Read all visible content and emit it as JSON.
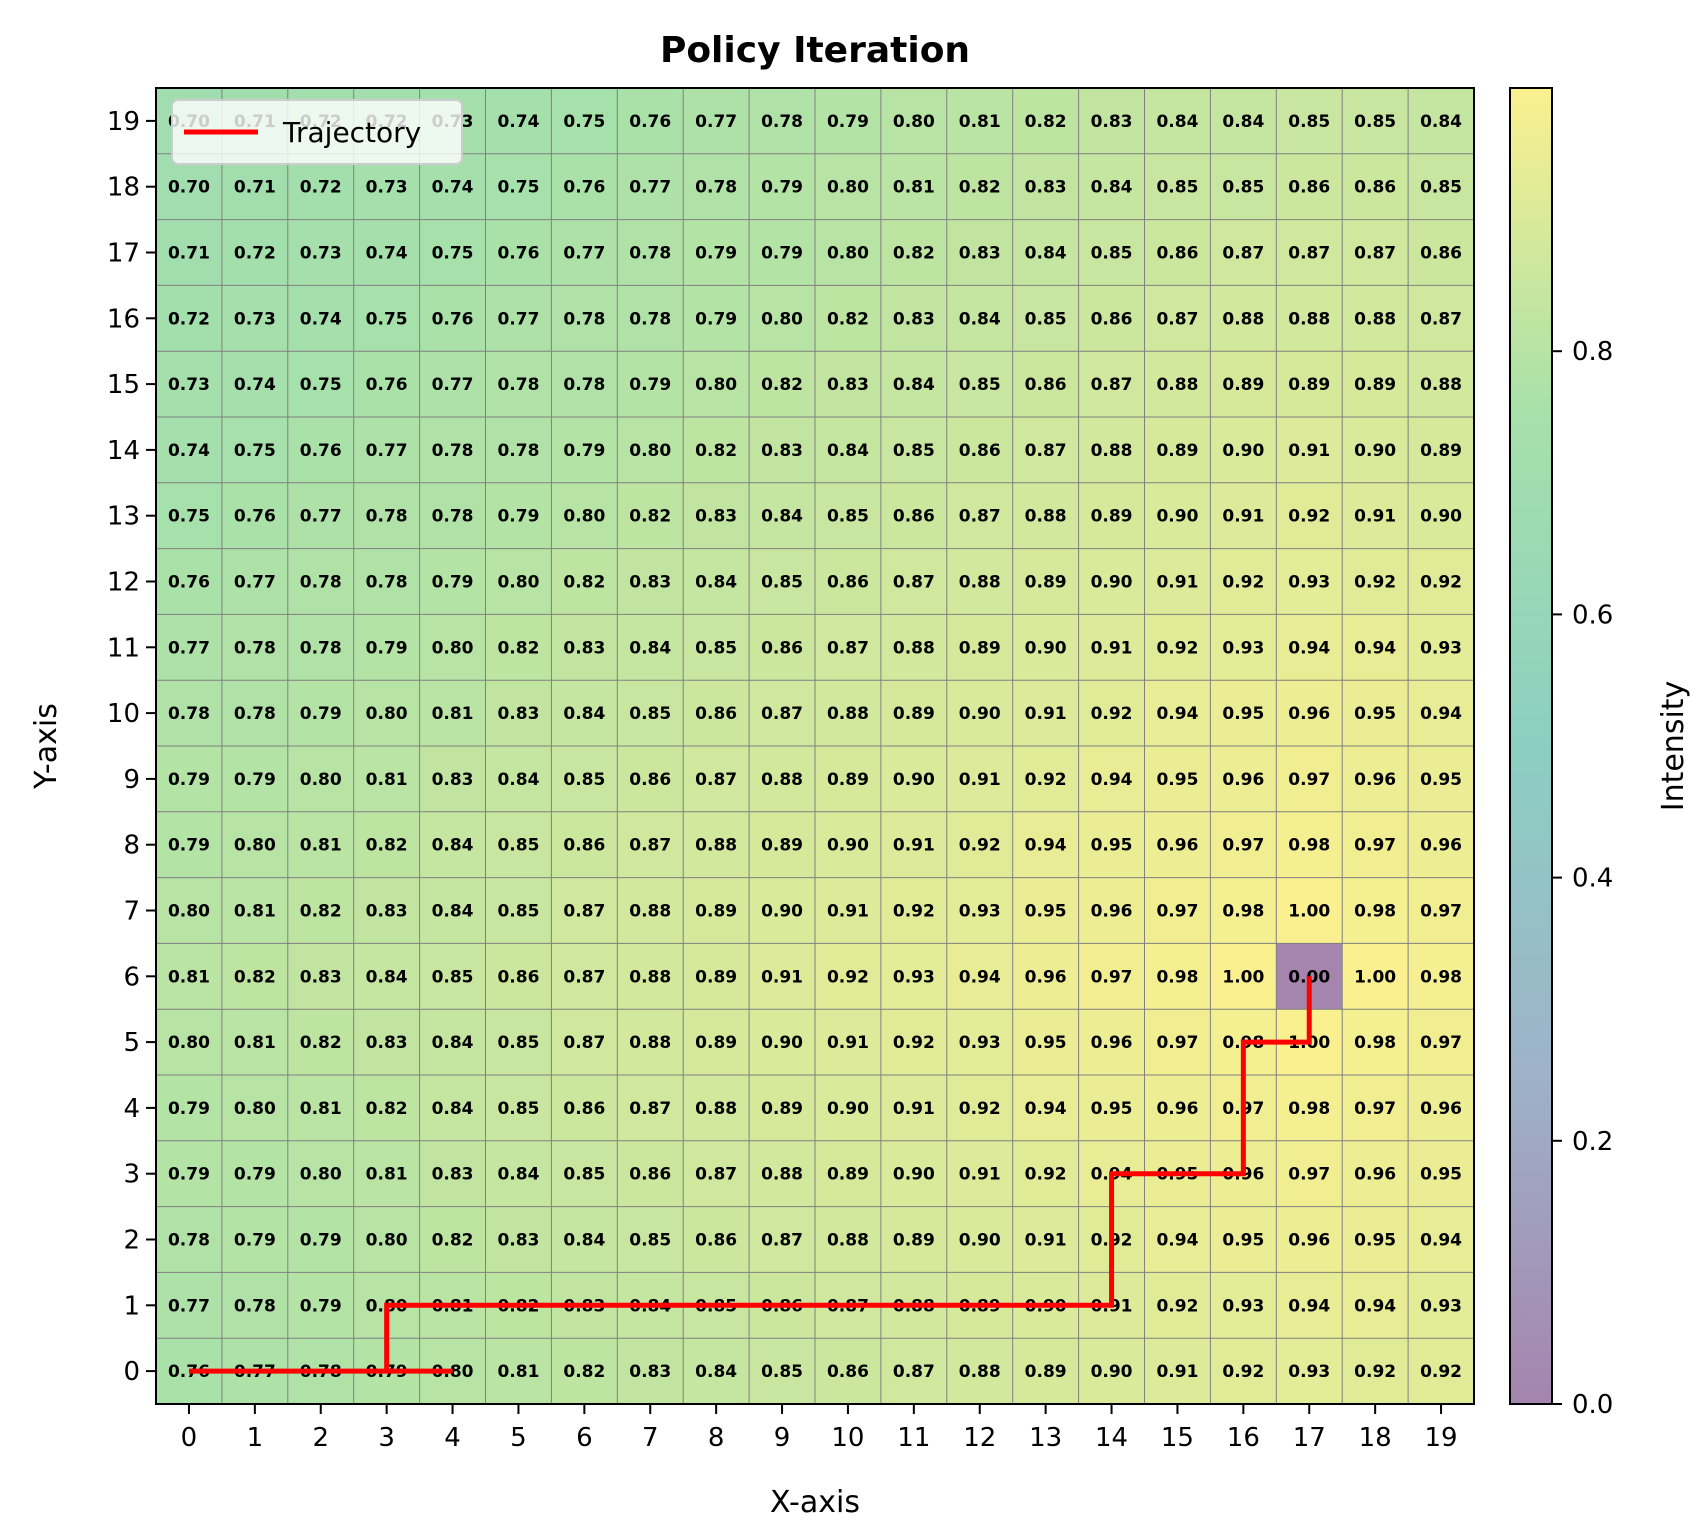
{
  "chart_data": {
    "type": "heatmap",
    "title": "Policy Iteration",
    "xlabel": "X-axis",
    "ylabel": "Y-axis",
    "x_ticks": [
      0,
      1,
      2,
      3,
      4,
      5,
      6,
      7,
      8,
      9,
      10,
      11,
      12,
      13,
      14,
      15,
      16,
      17,
      18,
      19
    ],
    "y_ticks": [
      0,
      1,
      2,
      3,
      4,
      5,
      6,
      7,
      8,
      9,
      10,
      11,
      12,
      13,
      14,
      15,
      16,
      17,
      18,
      19
    ],
    "grid": true,
    "colormap": "viridis (alpha 0.5)",
    "colorbar": {
      "label": "Intensity",
      "ticks": [
        "0.0",
        "0.2",
        "0.4",
        "0.6",
        "0.8"
      ],
      "range": [
        0,
        1
      ]
    },
    "rows_top_to_bottom": [
      [
        "0.70",
        "0.71",
        "0.72",
        "0.72",
        "0.73",
        "0.74",
        "0.75",
        "0.76",
        "0.77",
        "0.78",
        "0.79",
        "0.80",
        "0.81",
        "0.82",
        "0.83",
        "0.84",
        "0.84",
        "0.85",
        "0.85",
        "0.84"
      ],
      [
        "0.70",
        "0.71",
        "0.72",
        "0.73",
        "0.74",
        "0.75",
        "0.76",
        "0.77",
        "0.78",
        "0.79",
        "0.80",
        "0.81",
        "0.82",
        "0.83",
        "0.84",
        "0.85",
        "0.85",
        "0.86",
        "0.86",
        "0.85"
      ],
      [
        "0.71",
        "0.72",
        "0.73",
        "0.74",
        "0.75",
        "0.76",
        "0.77",
        "0.78",
        "0.79",
        "0.79",
        "0.80",
        "0.82",
        "0.83",
        "0.84",
        "0.85",
        "0.86",
        "0.87",
        "0.87",
        "0.87",
        "0.86"
      ],
      [
        "0.72",
        "0.73",
        "0.74",
        "0.75",
        "0.76",
        "0.77",
        "0.78",
        "0.78",
        "0.79",
        "0.80",
        "0.82",
        "0.83",
        "0.84",
        "0.85",
        "0.86",
        "0.87",
        "0.88",
        "0.88",
        "0.88",
        "0.87"
      ],
      [
        "0.73",
        "0.74",
        "0.75",
        "0.76",
        "0.77",
        "0.78",
        "0.78",
        "0.79",
        "0.80",
        "0.82",
        "0.83",
        "0.84",
        "0.85",
        "0.86",
        "0.87",
        "0.88",
        "0.89",
        "0.89",
        "0.89",
        "0.88"
      ],
      [
        "0.74",
        "0.75",
        "0.76",
        "0.77",
        "0.78",
        "0.78",
        "0.79",
        "0.80",
        "0.82",
        "0.83",
        "0.84",
        "0.85",
        "0.86",
        "0.87",
        "0.88",
        "0.89",
        "0.90",
        "0.91",
        "0.90",
        "0.89"
      ],
      [
        "0.75",
        "0.76",
        "0.77",
        "0.78",
        "0.78",
        "0.79",
        "0.80",
        "0.82",
        "0.83",
        "0.84",
        "0.85",
        "0.86",
        "0.87",
        "0.88",
        "0.89",
        "0.90",
        "0.91",
        "0.92",
        "0.91",
        "0.90"
      ],
      [
        "0.76",
        "0.77",
        "0.78",
        "0.78",
        "0.79",
        "0.80",
        "0.82",
        "0.83",
        "0.84",
        "0.85",
        "0.86",
        "0.87",
        "0.88",
        "0.89",
        "0.90",
        "0.91",
        "0.92",
        "0.93",
        "0.92",
        "0.92"
      ],
      [
        "0.77",
        "0.78",
        "0.78",
        "0.79",
        "0.80",
        "0.82",
        "0.83",
        "0.84",
        "0.85",
        "0.86",
        "0.87",
        "0.88",
        "0.89",
        "0.90",
        "0.91",
        "0.92",
        "0.93",
        "0.94",
        "0.94",
        "0.93"
      ],
      [
        "0.78",
        "0.78",
        "0.79",
        "0.80",
        "0.81",
        "0.83",
        "0.84",
        "0.85",
        "0.86",
        "0.87",
        "0.88",
        "0.89",
        "0.90",
        "0.91",
        "0.92",
        "0.94",
        "0.95",
        "0.96",
        "0.95",
        "0.94"
      ],
      [
        "0.79",
        "0.79",
        "0.80",
        "0.81",
        "0.83",
        "0.84",
        "0.85",
        "0.86",
        "0.87",
        "0.88",
        "0.89",
        "0.90",
        "0.91",
        "0.92",
        "0.94",
        "0.95",
        "0.96",
        "0.97",
        "0.96",
        "0.95"
      ],
      [
        "0.79",
        "0.80",
        "0.81",
        "0.82",
        "0.84",
        "0.85",
        "0.86",
        "0.87",
        "0.88",
        "0.89",
        "0.90",
        "0.91",
        "0.92",
        "0.94",
        "0.95",
        "0.96",
        "0.97",
        "0.98",
        "0.97",
        "0.96"
      ],
      [
        "0.80",
        "0.81",
        "0.82",
        "0.83",
        "0.84",
        "0.85",
        "0.87",
        "0.88",
        "0.89",
        "0.90",
        "0.91",
        "0.92",
        "0.93",
        "0.95",
        "0.96",
        "0.97",
        "0.98",
        "1.00",
        "0.98",
        "0.97"
      ],
      [
        "0.81",
        "0.82",
        "0.83",
        "0.84",
        "0.85",
        "0.86",
        "0.87",
        "0.88",
        "0.89",
        "0.91",
        "0.92",
        "0.93",
        "0.94",
        "0.96",
        "0.97",
        "0.98",
        "1.00",
        "0.00",
        "1.00",
        "0.98"
      ],
      [
        "0.80",
        "0.81",
        "0.82",
        "0.83",
        "0.84",
        "0.85",
        "0.87",
        "0.88",
        "0.89",
        "0.90",
        "0.91",
        "0.92",
        "0.93",
        "0.95",
        "0.96",
        "0.97",
        "0.98",
        "1.00",
        "0.98",
        "0.97"
      ],
      [
        "0.79",
        "0.80",
        "0.81",
        "0.82",
        "0.84",
        "0.85",
        "0.86",
        "0.87",
        "0.88",
        "0.89",
        "0.90",
        "0.91",
        "0.92",
        "0.94",
        "0.95",
        "0.96",
        "0.97",
        "0.98",
        "0.97",
        "0.96"
      ],
      [
        "0.79",
        "0.79",
        "0.80",
        "0.81",
        "0.83",
        "0.84",
        "0.85",
        "0.86",
        "0.87",
        "0.88",
        "0.89",
        "0.90",
        "0.91",
        "0.92",
        "0.94",
        "0.95",
        "0.96",
        "0.97",
        "0.96",
        "0.95"
      ],
      [
        "0.78",
        "0.79",
        "0.79",
        "0.80",
        "0.82",
        "0.83",
        "0.84",
        "0.85",
        "0.86",
        "0.87",
        "0.88",
        "0.89",
        "0.90",
        "0.91",
        "0.92",
        "0.94",
        "0.95",
        "0.96",
        "0.95",
        "0.94"
      ],
      [
        "0.77",
        "0.78",
        "0.79",
        "0.80",
        "0.81",
        "0.82",
        "0.83",
        "0.84",
        "0.85",
        "0.86",
        "0.87",
        "0.88",
        "0.89",
        "0.90",
        "0.91",
        "0.92",
        "0.93",
        "0.94",
        "0.94",
        "0.93"
      ],
      [
        "0.76",
        "0.77",
        "0.78",
        "0.79",
        "0.80",
        "0.81",
        "0.82",
        "0.83",
        "0.84",
        "0.85",
        "0.86",
        "0.87",
        "0.88",
        "0.89",
        "0.90",
        "0.91",
        "0.92",
        "0.93",
        "0.92",
        "0.92"
      ]
    ],
    "series": [
      {
        "name": "Trajectory",
        "type": "line",
        "color": "#ff0000",
        "points": [
          [
            0,
            0
          ],
          [
            1,
            0
          ],
          [
            2,
            0
          ],
          [
            3,
            0
          ],
          [
            4,
            0
          ],
          [
            3,
            0
          ],
          [
            3,
            1
          ],
          [
            4,
            1
          ],
          [
            5,
            1
          ],
          [
            6,
            1
          ],
          [
            7,
            1
          ],
          [
            8,
            1
          ],
          [
            9,
            1
          ],
          [
            10,
            1
          ],
          [
            11,
            1
          ],
          [
            12,
            1
          ],
          [
            13,
            1
          ],
          [
            14,
            1
          ],
          [
            14,
            2
          ],
          [
            14,
            3
          ],
          [
            15,
            3
          ],
          [
            16,
            3
          ],
          [
            16,
            4
          ],
          [
            16,
            5
          ],
          [
            17,
            5
          ],
          [
            17,
            6
          ]
        ]
      }
    ],
    "legend": {
      "placement": "top-left",
      "entries": [
        "Trajectory"
      ]
    }
  }
}
